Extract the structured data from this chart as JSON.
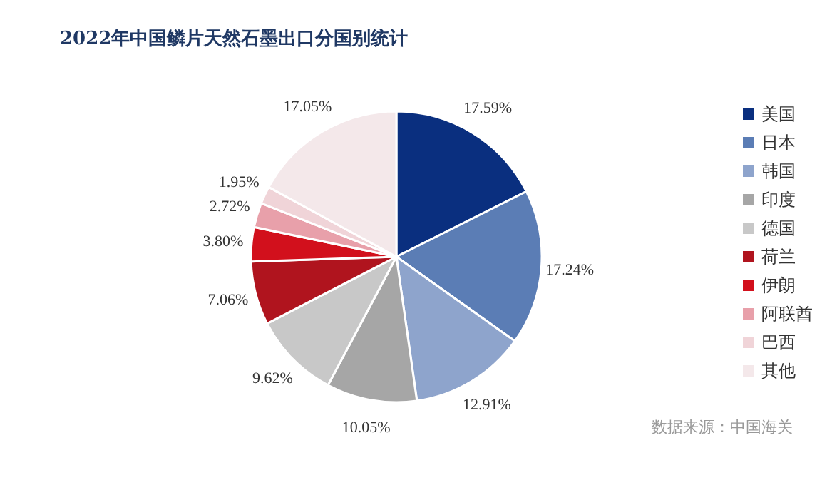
{
  "chart_data": {
    "type": "pie",
    "title": "2022年中国鳞片天然石墨出口分国别统计",
    "categories": [
      "美国",
      "日本",
      "韩国",
      "印度",
      "德国",
      "荷兰",
      "伊朗",
      "阿联酋",
      "巴西",
      "其他"
    ],
    "values": [
      17.59,
      17.24,
      12.91,
      10.05,
      9.62,
      7.06,
      3.8,
      2.72,
      1.95,
      17.05
    ],
    "value_labels": [
      "17.59%",
      "17.24%",
      "12.91%",
      "10.05%",
      "9.62%",
      "7.06%",
      "3.80%",
      "2.72%",
      "1.95%",
      "17.05%"
    ],
    "colors": [
      "#0a2f7f",
      "#5b7db5",
      "#8ea4cc",
      "#a6a6a6",
      "#c8c8c8",
      "#b0141e",
      "#d2101c",
      "#e8a0aa",
      "#f0d4d8",
      "#f4e8ea"
    ],
    "legend": "right",
    "annotations": [
      "数据来源：中国海关"
    ]
  }
}
